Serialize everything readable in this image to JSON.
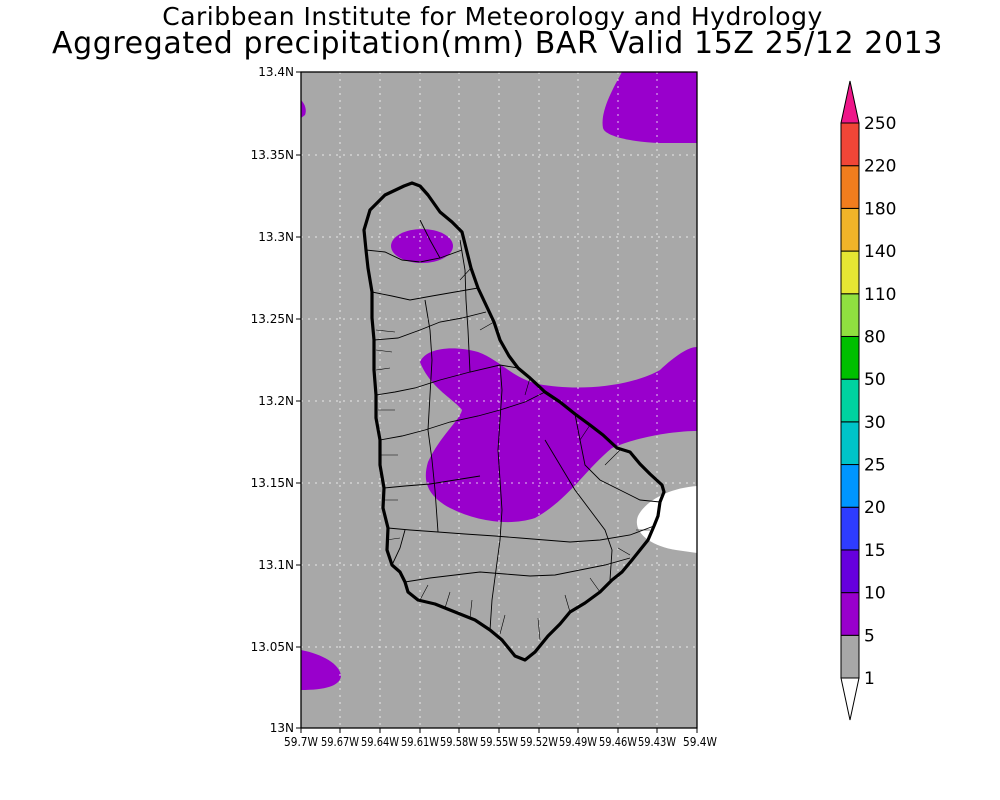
{
  "title": {
    "line1": "Caribbean Institute for Meteorology and Hydrology",
    "line2": "Aggregated precipitation(mm) BAR Valid 15Z 25/12 2013"
  },
  "map": {
    "region": "Barbados",
    "variable": "Aggregated precipitation (mm)",
    "lat_labels": [
      "13.4N",
      "13.35N",
      "13.3N",
      "13.25N",
      "13.2N",
      "13.15N",
      "13.1N",
      "13.05N",
      "13N"
    ],
    "lon_labels": [
      "59.7W",
      "59.67W",
      "59.64W",
      "59.61W",
      "59.58W",
      "59.55W",
      "59.52W",
      "59.49W",
      "59.46W",
      "59.43W",
      "59.4W"
    ],
    "lat_range": [
      13.0,
      13.4
    ],
    "lon_range": [
      -59.7,
      -59.4
    ],
    "background_class": "1-5",
    "colors": {
      "land_bg": "#a8a8a8",
      "precip_5_10": "#9900cc",
      "below_1": "#ffffff",
      "coast": "#000000"
    }
  },
  "colorbar": {
    "levels": [
      "1",
      "5",
      "10",
      "15",
      "20",
      "25",
      "30",
      "50",
      "80",
      "110",
      "140",
      "180",
      "220",
      "250"
    ],
    "colors": [
      "#a8a8a8",
      "#9900cc",
      "#6600dd",
      "#2e3cff",
      "#0096ff",
      "#00c4c8",
      "#00d2a0",
      "#00c000",
      "#90e040",
      "#e6e633",
      "#f0b429",
      "#f07d1e",
      "#f04637"
    ],
    "under_color": "#ffffff",
    "over_color": "#ee1689"
  }
}
